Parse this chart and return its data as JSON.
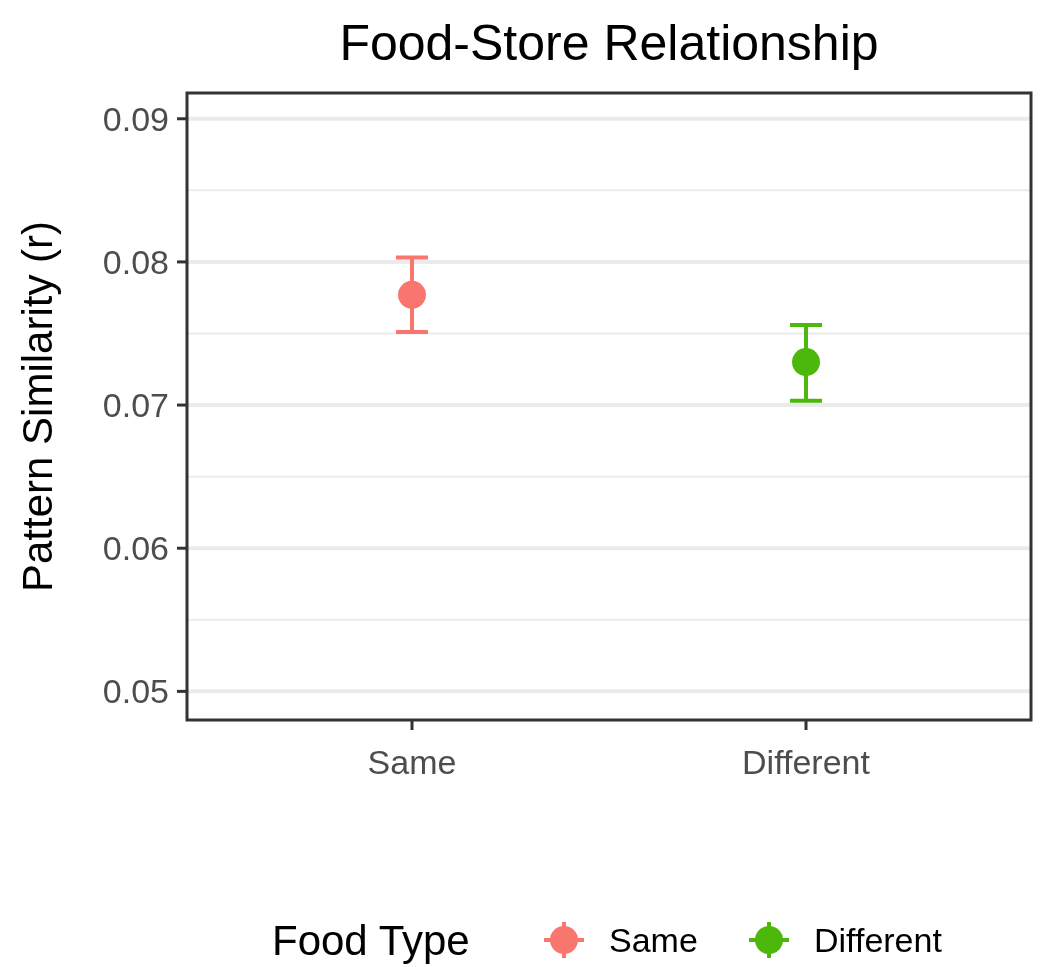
{
  "chart_data": {
    "type": "scatter",
    "title": "Food-Store Relationship",
    "ylabel": "Pattern Similarity (r)",
    "legend_title": "Food Type",
    "categories": [
      "Same",
      "Different"
    ],
    "series": [
      {
        "name": "Same",
        "color": "#f8766d",
        "values": [
          0.0777,
          null
        ],
        "errors": [
          [
            0.0751,
            0.0803
          ],
          null
        ]
      },
      {
        "name": "Different",
        "color": "#4cb80c",
        "values": [
          null,
          0.073
        ],
        "errors": [
          null,
          [
            0.0703,
            0.0756
          ]
        ]
      }
    ],
    "ylim": [
      0.048,
      0.0918
    ],
    "yticks": [
      0.05,
      0.06,
      0.07,
      0.08,
      0.09
    ],
    "grid": "y",
    "legend": "bottom",
    "marker": "circle"
  }
}
